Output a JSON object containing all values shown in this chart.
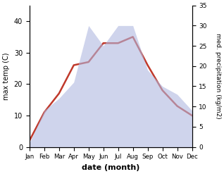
{
  "months": [
    "Jan",
    "Feb",
    "Mar",
    "Apr",
    "May",
    "Jun",
    "Jul",
    "Aug",
    "Sep",
    "Oct",
    "Nov",
    "Dec"
  ],
  "x": [
    1,
    2,
    3,
    4,
    5,
    6,
    7,
    8,
    9,
    10,
    11,
    12
  ],
  "temp": [
    2,
    11,
    17,
    26,
    27,
    33,
    33,
    35,
    26,
    18,
    13,
    10
  ],
  "precip": [
    1,
    9,
    12,
    16,
    30,
    25,
    30,
    30,
    19,
    15,
    13,
    9
  ],
  "temp_color": "#c0392b",
  "precip_fill_color": "#b0b8e0",
  "xlabel": "date (month)",
  "ylabel_left": "max temp (C)",
  "ylabel_right": "med. precipitation (kg/m2)",
  "ylim_left": [
    0,
    45
  ],
  "ylim_right": [
    0,
    35
  ],
  "yticks_left": [
    0,
    10,
    20,
    30,
    40
  ],
  "yticks_right": [
    0,
    5,
    10,
    15,
    20,
    25,
    30,
    35
  ],
  "background_color": "#ffffff",
  "figsize": [
    3.18,
    2.47
  ],
  "dpi": 100
}
